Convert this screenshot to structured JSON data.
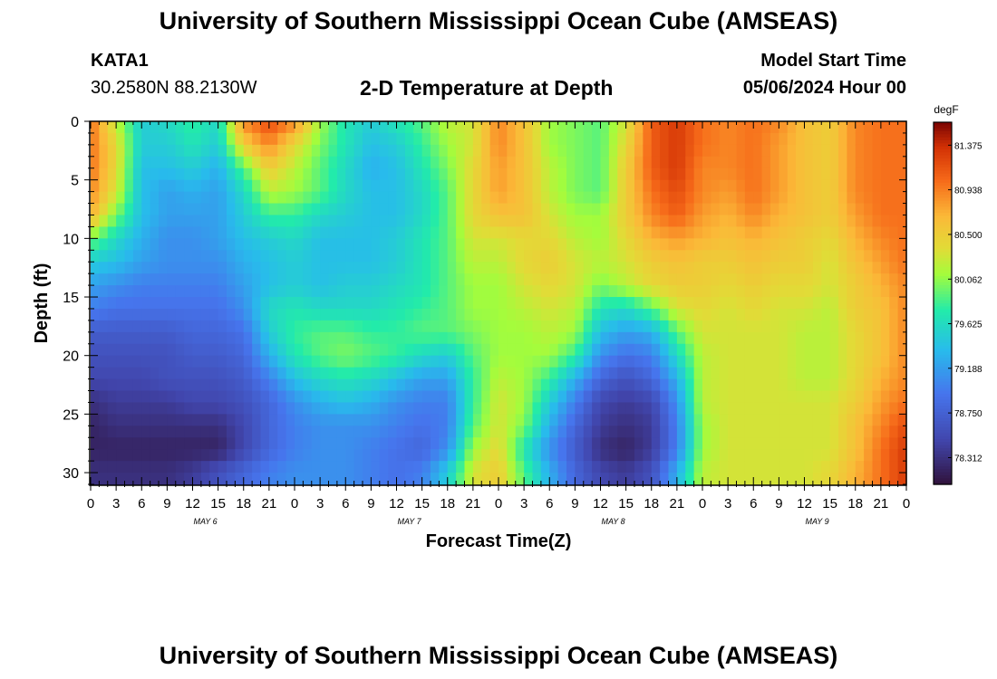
{
  "header": {
    "title": "University of Southern Mississippi Ocean Cube (AMSEAS)",
    "station": "KATA1",
    "coords": "30.2580N  88.2130W",
    "chart_title": "2-D Temperature at Depth",
    "model_label": "Model Start Time",
    "model_time": "05/06/2024 Hour 00"
  },
  "footer": {
    "title": "University of Southern Mississippi Ocean Cube (AMSEAS)"
  },
  "chart_data": {
    "type": "heatmap",
    "title": "2-D Temperature at Depth",
    "xlabel": "Forecast Time(Z)",
    "ylabel": "Depth (ft)",
    "x_tick_labels": [
      "0",
      "3",
      "6",
      "9",
      "12",
      "15",
      "18",
      "21",
      "0",
      "3",
      "6",
      "9",
      "12",
      "15",
      "18",
      "21",
      "0",
      "3",
      "6",
      "9",
      "12",
      "15",
      "18",
      "21",
      "0",
      "3",
      "6",
      "9",
      "12",
      "15",
      "18",
      "21",
      "0"
    ],
    "day_labels": [
      "MAY 6",
      "MAY 7",
      "MAY 8",
      "MAY 9"
    ],
    "xlim_hours": [
      0,
      96
    ],
    "y_ticks": [
      0,
      5,
      10,
      15,
      20,
      25,
      30
    ],
    "ylim": [
      0,
      31
    ],
    "y_inverted": true,
    "colorbar": {
      "unit": "degF",
      "ticks": [
        "81.375",
        "80.938",
        "80.500",
        "80.062",
        "79.625",
        "79.188",
        "78.750",
        "78.312"
      ],
      "range": [
        78.05,
        81.6
      ]
    },
    "grid_hours": [
      0,
      3,
      6,
      9,
      12,
      15,
      18,
      21,
      24,
      27,
      30,
      33,
      36,
      39,
      42,
      45,
      48,
      51,
      54,
      57,
      60,
      63,
      66,
      69,
      72,
      75,
      78,
      81,
      84,
      87,
      90,
      93,
      96
    ],
    "grid_depths": [
      0,
      2,
      4,
      6,
      8,
      10,
      12,
      14,
      16,
      18,
      20,
      22,
      24,
      26,
      28,
      30
    ],
    "temperature": [
      [
        81.0,
        80.2,
        79.5,
        79.6,
        79.8,
        79.6,
        80.9,
        81.2,
        80.9,
        80.1,
        79.7,
        79.5,
        79.7,
        79.9,
        80.2,
        80.3,
        80.9,
        80.6,
        80.1,
        80.0,
        79.9,
        80.3,
        81.1,
        81.3,
        81.0,
        80.9,
        81.0,
        80.9,
        80.6,
        80.5,
        80.9,
        81.0,
        81.0
      ],
      [
        81.0,
        80.4,
        79.5,
        79.5,
        79.7,
        79.5,
        80.5,
        80.9,
        80.4,
        80.0,
        79.7,
        79.4,
        79.5,
        79.8,
        80.1,
        80.3,
        80.9,
        80.6,
        80.1,
        80.0,
        79.9,
        80.4,
        81.1,
        81.3,
        81.0,
        80.9,
        81.0,
        80.8,
        80.6,
        80.5,
        80.9,
        81.0,
        81.0
      ],
      [
        81.0,
        80.4,
        79.4,
        79.4,
        79.5,
        79.3,
        79.9,
        80.5,
        80.2,
        79.9,
        79.6,
        79.3,
        79.4,
        79.7,
        80.0,
        80.4,
        80.8,
        80.6,
        80.2,
        80.0,
        79.9,
        80.5,
        81.1,
        81.3,
        80.9,
        80.9,
        81.0,
        80.8,
        80.6,
        80.5,
        80.9,
        81.0,
        81.0
      ],
      [
        80.9,
        80.3,
        79.4,
        79.2,
        79.3,
        79.2,
        79.6,
        80.2,
        80.1,
        79.9,
        79.6,
        79.4,
        79.4,
        79.6,
        79.9,
        80.4,
        80.8,
        80.6,
        80.2,
        80.0,
        79.9,
        80.5,
        81.0,
        81.2,
        80.9,
        80.8,
        81.0,
        80.8,
        80.6,
        80.5,
        80.9,
        81.0,
        81.0
      ],
      [
        80.7,
        80.0,
        79.4,
        79.2,
        79.2,
        79.2,
        79.5,
        79.8,
        79.8,
        79.6,
        79.5,
        79.4,
        79.4,
        79.6,
        79.9,
        80.4,
        80.6,
        80.6,
        80.3,
        80.1,
        80.1,
        80.5,
        80.9,
        81.1,
        80.8,
        80.7,
        80.9,
        80.7,
        80.6,
        80.5,
        80.8,
        81.0,
        81.0
      ],
      [
        80.0,
        79.6,
        79.3,
        79.1,
        79.1,
        79.2,
        79.4,
        79.5,
        79.6,
        79.4,
        79.4,
        79.4,
        79.5,
        79.7,
        79.9,
        80.3,
        80.3,
        80.4,
        80.4,
        80.2,
        80.1,
        80.4,
        80.7,
        80.8,
        80.7,
        80.6,
        80.7,
        80.6,
        80.5,
        80.4,
        80.7,
        80.9,
        81.0
      ],
      [
        79.5,
        79.4,
        79.2,
        79.1,
        79.1,
        79.1,
        79.3,
        79.4,
        79.5,
        79.4,
        79.4,
        79.4,
        79.5,
        79.7,
        79.9,
        80.2,
        80.2,
        80.4,
        80.5,
        80.3,
        80.2,
        80.3,
        80.5,
        80.6,
        80.5,
        80.5,
        80.6,
        80.5,
        80.5,
        80.3,
        80.6,
        80.8,
        81.0
      ],
      [
        79.2,
        79.1,
        79.0,
        79.0,
        79.0,
        79.0,
        79.2,
        79.4,
        79.5,
        79.4,
        79.5,
        79.5,
        79.6,
        79.7,
        79.9,
        80.1,
        80.1,
        80.3,
        80.4,
        80.3,
        80.0,
        80.2,
        80.4,
        80.5,
        80.5,
        80.4,
        80.5,
        80.4,
        80.4,
        80.3,
        80.5,
        80.7,
        80.9
      ],
      [
        79.0,
        78.9,
        78.9,
        78.9,
        78.9,
        78.9,
        79.1,
        79.6,
        79.7,
        79.6,
        79.6,
        79.6,
        79.7,
        79.8,
        79.9,
        80.1,
        80.1,
        80.2,
        80.3,
        80.2,
        79.7,
        79.6,
        79.9,
        80.3,
        80.4,
        80.3,
        80.4,
        80.3,
        80.3,
        80.2,
        80.5,
        80.6,
        80.9
      ],
      [
        78.7,
        78.7,
        78.7,
        78.7,
        78.8,
        78.8,
        78.9,
        79.5,
        79.8,
        79.9,
        79.9,
        79.8,
        79.8,
        79.9,
        79.9,
        80.0,
        80.1,
        80.1,
        80.2,
        80.1,
        79.4,
        79.2,
        79.3,
        79.9,
        80.3,
        80.3,
        80.3,
        80.3,
        80.2,
        80.2,
        80.4,
        80.6,
        80.9
      ],
      [
        78.6,
        78.6,
        78.6,
        78.6,
        78.7,
        78.7,
        78.8,
        79.3,
        79.7,
        79.9,
        80.0,
        79.9,
        79.8,
        79.6,
        79.5,
        79.9,
        80.1,
        80.1,
        80.1,
        79.8,
        79.1,
        78.9,
        79.0,
        79.6,
        80.2,
        80.3,
        80.3,
        80.3,
        80.2,
        80.2,
        80.4,
        80.6,
        80.9
      ],
      [
        78.5,
        78.5,
        78.5,
        78.6,
        78.6,
        78.6,
        78.7,
        79.0,
        79.4,
        79.6,
        79.7,
        79.6,
        79.4,
        79.2,
        79.2,
        79.8,
        80.2,
        80.1,
        79.8,
        79.3,
        78.8,
        78.6,
        78.8,
        79.3,
        80.2,
        80.3,
        80.3,
        80.3,
        80.2,
        80.2,
        80.4,
        80.7,
        80.9
      ],
      [
        78.3,
        78.4,
        78.4,
        78.4,
        78.5,
        78.5,
        78.6,
        78.8,
        79.1,
        79.3,
        79.4,
        79.3,
        79.1,
        79.0,
        79.0,
        79.8,
        80.3,
        80.1,
        79.5,
        79.0,
        78.5,
        78.4,
        78.5,
        79.1,
        80.2,
        80.3,
        80.3,
        80.3,
        80.3,
        80.3,
        80.5,
        80.8,
        81.0
      ],
      [
        78.2,
        78.3,
        78.3,
        78.3,
        78.3,
        78.3,
        78.5,
        78.8,
        79.0,
        79.1,
        79.1,
        79.1,
        79.0,
        78.9,
        79.0,
        79.9,
        80.3,
        80.0,
        79.3,
        78.8,
        78.4,
        78.3,
        78.4,
        79.0,
        80.1,
        80.3,
        80.3,
        80.3,
        80.3,
        80.3,
        80.6,
        80.9,
        81.2
      ],
      [
        78.2,
        78.2,
        78.2,
        78.2,
        78.2,
        78.2,
        78.5,
        78.8,
        79.0,
        79.1,
        79.1,
        79.0,
        78.9,
        78.8,
        79.1,
        80.1,
        80.4,
        79.7,
        79.1,
        78.7,
        78.3,
        78.2,
        78.4,
        79.0,
        80.1,
        80.3,
        80.3,
        80.3,
        80.3,
        80.3,
        80.6,
        81.0,
        81.3
      ],
      [
        78.3,
        78.3,
        78.3,
        78.3,
        78.4,
        78.6,
        78.8,
        79.0,
        79.1,
        79.1,
        79.1,
        79.0,
        78.9,
        79.0,
        79.5,
        80.3,
        80.5,
        79.9,
        79.3,
        78.8,
        78.5,
        78.4,
        78.6,
        79.3,
        80.2,
        80.3,
        80.3,
        80.3,
        80.3,
        80.4,
        80.7,
        81.0,
        81.3
      ]
    ]
  }
}
